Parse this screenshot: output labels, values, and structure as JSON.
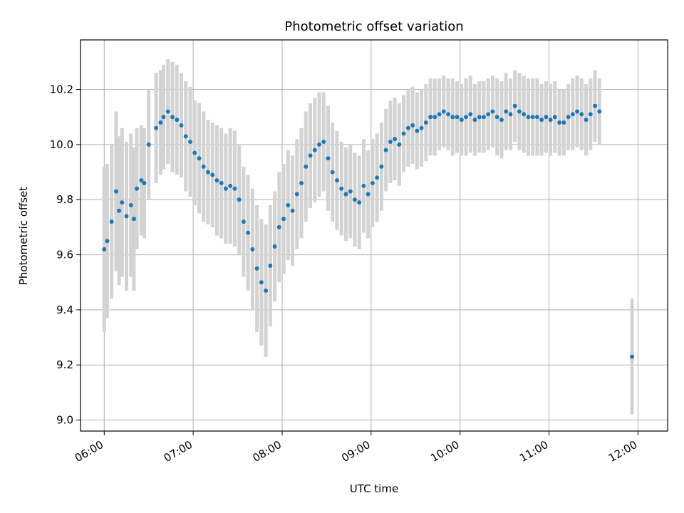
{
  "chart_data": {
    "type": "scatter",
    "title": "Photometric offset variation",
    "xlabel": "UTC time",
    "ylabel": "Photometric offset",
    "x_tick_labels": [
      "06:00",
      "07:00",
      "08:00",
      "09:00",
      "10:00",
      "11:00",
      "12:00"
    ],
    "y_tick_labels": [
      "9.0",
      "9.2",
      "9.4",
      "9.6",
      "9.8",
      "10.0",
      "10.2"
    ],
    "x_range_minutes": [
      344,
      740
    ],
    "ylim": [
      8.96,
      10.38
    ],
    "grid": true,
    "legend": "none",
    "colors": {
      "points": "#1f77b4",
      "errorbars": "#d3d3d3",
      "grid": "#b0b0b0"
    },
    "series": [
      {
        "x": [
          "06:00",
          "06:02",
          "06:05",
          "06:08",
          "06:10",
          "06:12",
          "06:15",
          "06:18",
          "06:20",
          "06:22",
          "06:25",
          "06:27",
          "06:30",
          "06:35",
          "06:38",
          "06:40",
          "06:43",
          "06:46",
          "06:49",
          "06:52",
          "06:55",
          "06:58",
          "07:01",
          "07:04",
          "07:07",
          "07:10",
          "07:13",
          "07:16",
          "07:19",
          "07:22",
          "07:25",
          "07:28",
          "07:31",
          "07:34",
          "07:37",
          "07:40",
          "07:43",
          "07:46",
          "07:49",
          "07:52",
          "07:55",
          "07:58",
          "08:01",
          "08:04",
          "08:07",
          "08:10",
          "08:13",
          "08:16",
          "08:19",
          "08:22",
          "08:25",
          "08:28",
          "08:31",
          "08:34",
          "08:37",
          "08:40",
          "08:43",
          "08:46",
          "08:49",
          "08:52",
          "08:55",
          "08:58",
          "09:01",
          "09:04",
          "09:07",
          "09:10",
          "09:13",
          "09:16",
          "09:19",
          "09:22",
          "09:25",
          "09:28",
          "09:31",
          "09:34",
          "09:37",
          "09:40",
          "09:43",
          "09:46",
          "09:49",
          "09:52",
          "09:55",
          "09:58",
          "10:01",
          "10:04",
          "10:07",
          "10:10",
          "10:13",
          "10:16",
          "10:19",
          "10:22",
          "10:25",
          "10:28",
          "10:31",
          "10:34",
          "10:37",
          "10:40",
          "10:43",
          "10:46",
          "10:49",
          "10:52",
          "10:55",
          "10:58",
          "11:01",
          "11:04",
          "11:07",
          "11:10",
          "11:13",
          "11:16",
          "11:19",
          "11:22",
          "11:25",
          "11:28",
          "11:31",
          "11:34",
          "11:56"
        ],
        "y": [
          9.62,
          9.65,
          9.72,
          9.83,
          9.76,
          9.79,
          9.74,
          9.78,
          9.73,
          9.84,
          9.87,
          9.86,
          10.0,
          10.06,
          10.08,
          10.1,
          10.12,
          10.1,
          10.09,
          10.07,
          10.03,
          10.01,
          9.97,
          9.95,
          9.92,
          9.9,
          9.89,
          9.87,
          9.86,
          9.84,
          9.85,
          9.84,
          9.8,
          9.72,
          9.68,
          9.62,
          9.55,
          9.5,
          9.47,
          9.56,
          9.63,
          9.7,
          9.73,
          9.78,
          9.76,
          9.82,
          9.86,
          9.92,
          9.96,
          9.98,
          10.0,
          10.01,
          9.95,
          9.9,
          9.87,
          9.84,
          9.82,
          9.83,
          9.8,
          9.79,
          9.85,
          9.82,
          9.86,
          9.88,
          9.92,
          9.98,
          10.01,
          10.02,
          10.0,
          10.04,
          10.06,
          10.07,
          10.05,
          10.06,
          10.08,
          10.1,
          10.1,
          10.11,
          10.12,
          10.11,
          10.1,
          10.1,
          10.09,
          10.1,
          10.11,
          10.09,
          10.1,
          10.1,
          10.11,
          10.12,
          10.1,
          10.09,
          10.12,
          10.11,
          10.14,
          10.12,
          10.11,
          10.1,
          10.1,
          10.1,
          10.09,
          10.1,
          10.09,
          10.1,
          10.08,
          10.08,
          10.1,
          10.11,
          10.12,
          10.11,
          10.09,
          10.11,
          10.14,
          10.12,
          9.23
        ],
        "err": [
          0.3,
          0.28,
          0.28,
          0.29,
          0.27,
          0.27,
          0.27,
          0.26,
          0.26,
          0.22,
          0.2,
          0.2,
          0.2,
          0.2,
          0.19,
          0.19,
          0.19,
          0.2,
          0.2,
          0.19,
          0.2,
          0.2,
          0.19,
          0.2,
          0.2,
          0.19,
          0.19,
          0.2,
          0.2,
          0.2,
          0.21,
          0.21,
          0.2,
          0.2,
          0.21,
          0.22,
          0.23,
          0.23,
          0.24,
          0.22,
          0.2,
          0.2,
          0.2,
          0.2,
          0.2,
          0.2,
          0.2,
          0.2,
          0.19,
          0.19,
          0.19,
          0.18,
          0.19,
          0.18,
          0.18,
          0.17,
          0.17,
          0.17,
          0.17,
          0.17,
          0.17,
          0.16,
          0.16,
          0.16,
          0.16,
          0.15,
          0.15,
          0.15,
          0.15,
          0.14,
          0.14,
          0.14,
          0.14,
          0.14,
          0.14,
          0.14,
          0.14,
          0.13,
          0.13,
          0.13,
          0.14,
          0.13,
          0.13,
          0.14,
          0.14,
          0.13,
          0.13,
          0.13,
          0.13,
          0.13,
          0.14,
          0.14,
          0.14,
          0.13,
          0.13,
          0.14,
          0.14,
          0.14,
          0.14,
          0.14,
          0.13,
          0.13,
          0.13,
          0.13,
          0.12,
          0.12,
          0.12,
          0.13,
          0.13,
          0.13,
          0.13,
          0.13,
          0.13,
          0.12,
          0.21
        ]
      }
    ]
  }
}
